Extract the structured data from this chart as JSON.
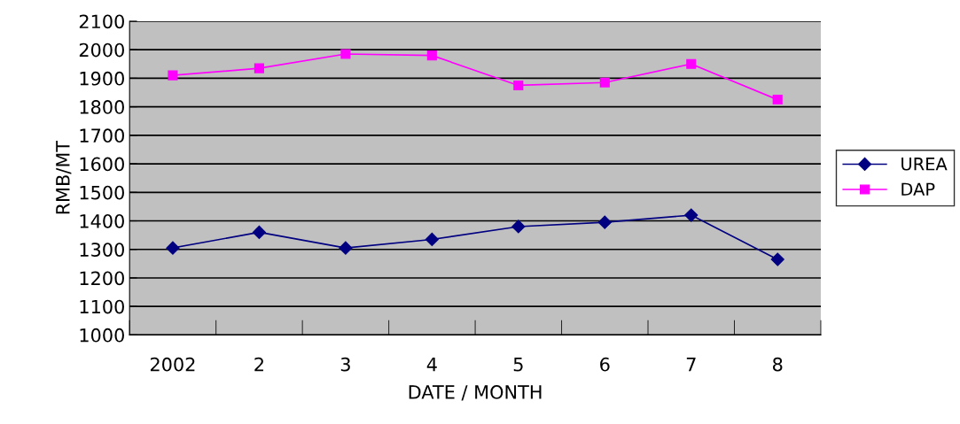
{
  "chart_data": {
    "type": "line",
    "xlabel": "DATE / MONTH",
    "ylabel": "RMB/MT",
    "categories": [
      "2002",
      "2",
      "3",
      "4",
      "5",
      "6",
      "7",
      "8"
    ],
    "series": [
      {
        "name": "UREA",
        "color": "#000080",
        "marker": "diamond",
        "values": [
          1305,
          1360,
          1305,
          1335,
          1380,
          1395,
          1420,
          1265
        ]
      },
      {
        "name": "DAP",
        "color": "#ff00ff",
        "marker": "square",
        "values": [
          1910,
          1935,
          1985,
          1980,
          1875,
          1885,
          1950,
          1825
        ]
      }
    ],
    "ylim": [
      1000,
      2100
    ],
    "yticks": [
      1000,
      1100,
      1200,
      1300,
      1400,
      1500,
      1600,
      1700,
      1800,
      1900,
      2000,
      2100
    ],
    "grid": "y",
    "legend": "right"
  }
}
